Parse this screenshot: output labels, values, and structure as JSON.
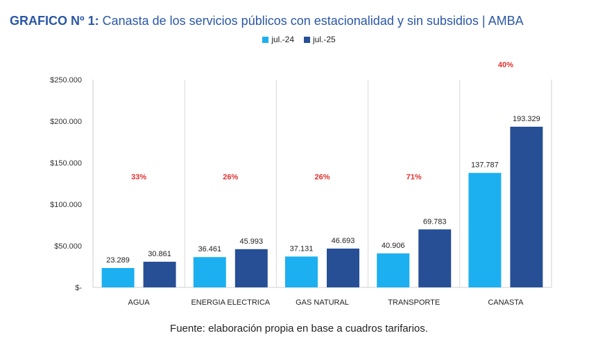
{
  "header": {
    "title_bold": "GRAFICO Nº 1:",
    "title_rest": "Canasta de los servicios públicos con estacionalidad y sin subsidios | AMBA"
  },
  "legend": [
    {
      "label": "jul.-24",
      "color": "#1cb0f0"
    },
    {
      "label": "jul.-25",
      "color": "#264f96"
    }
  ],
  "footer": {
    "source": "Fuente: elaboración propia en base a cuadros tarifarios."
  },
  "chart_data": {
    "type": "bar",
    "title": "Canasta de los servicios públicos con estacionalidad y sin subsidios | AMBA",
    "categories": [
      "AGUA",
      "ENERGIA ELECTRICA",
      "GAS NATURAL",
      "TRANSPORTE",
      "CANASTA"
    ],
    "series": [
      {
        "name": "jul.-24",
        "values": [
          23289,
          36461,
          37131,
          40906,
          137787
        ],
        "labels": [
          "23.289",
          "36.461",
          "37.131",
          "40.906",
          "137.787"
        ],
        "color": "#1cb0f0"
      },
      {
        "name": "jul.-25",
        "values": [
          30861,
          45993,
          46693,
          69783,
          193329
        ],
        "labels": [
          "30.861",
          "45.993",
          "46.693",
          "69.783",
          "193.329"
        ],
        "color": "#264f96"
      }
    ],
    "pct_change": [
      "33%",
      "26%",
      "26%",
      "71%",
      "40%"
    ],
    "pct_color": "#e0312e",
    "ylim": [
      0,
      250000
    ],
    "yticks": [
      0,
      50000,
      100000,
      150000,
      200000,
      250000
    ],
    "ytick_labels": [
      "$-",
      "$50.000",
      "$100.000",
      "$150.000",
      "$200.000",
      "$250.000"
    ],
    "grid": "vertical separators",
    "legend_position": "top-center"
  }
}
